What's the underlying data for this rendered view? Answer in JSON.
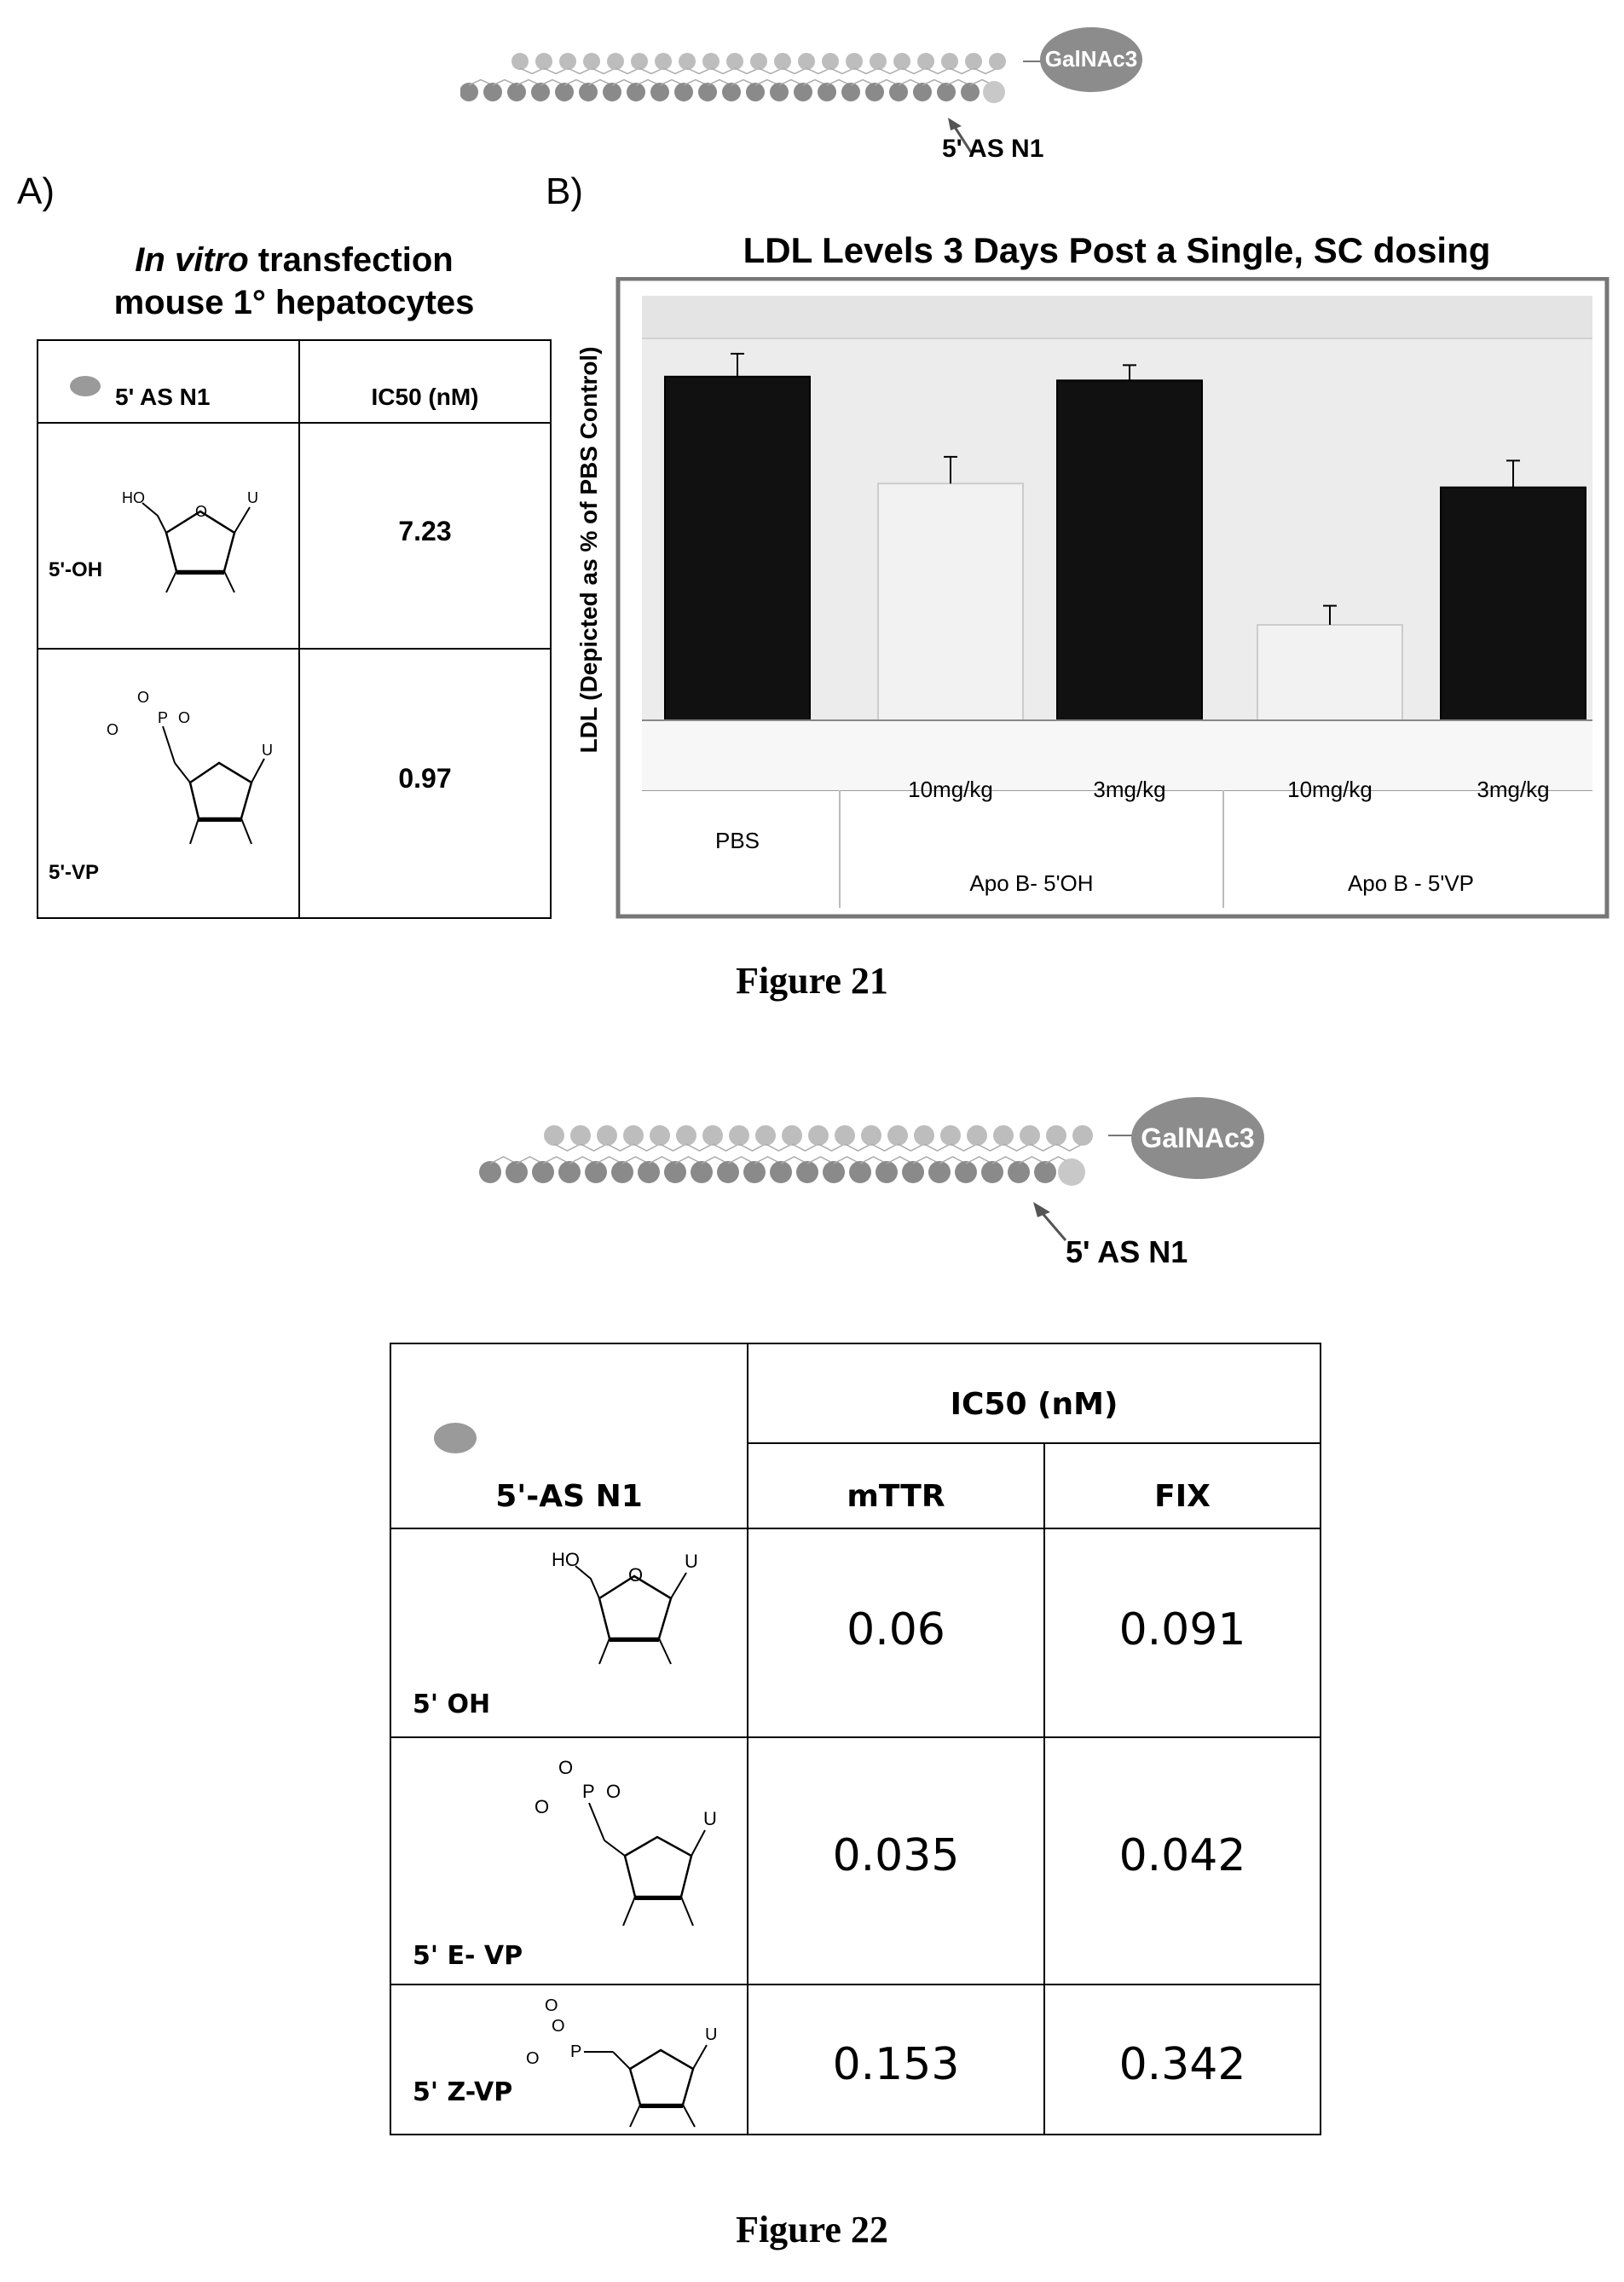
{
  "fig21": {
    "diagram": {
      "conjugate": "GalNAc3",
      "arrow_label": "5' AS N1"
    },
    "panel_a_label": "A)",
    "panel_b_label": "B)",
    "panel_a": {
      "title_italic": "In vitro",
      "title_rest": " transfection",
      "title_line2": "mouse 1° hepatocytes",
      "col1_header": "5' AS N1",
      "col2_header": "IC50 (nM)",
      "rows": [
        {
          "label": "5'-OH",
          "value": "7.23"
        },
        {
          "label": "5'-VP",
          "value": "0.97"
        }
      ]
    },
    "caption": "Figure 21"
  },
  "chart_data": {
    "type": "bar",
    "title": "LDL Levels 3 Days Post a Single, SC dosing",
    "ylabel": "LDL (Depicted as % of PBS Control)",
    "categories": [
      "PBS",
      "10mg/kg",
      "3mg/kg",
      "10mg/kg",
      "3mg/kg"
    ],
    "groups": [
      "Apo B- 5'OH",
      "Apo B - 5'VP"
    ],
    "values": [
      90,
      62,
      89,
      25,
      61
    ],
    "errors": [
      6,
      7,
      4,
      5,
      7
    ],
    "bar_colors": [
      "#111111",
      "#eeeeee",
      "#111111",
      "#eeeeee",
      "#111111"
    ],
    "ylim": [
      0,
      100
    ],
    "grid": false,
    "legend": "none"
  },
  "fig22": {
    "diagram": {
      "conjugate": "GalNAc3",
      "arrow_label": "5' AS N1"
    },
    "header_group": "IC50 (nM)",
    "col0_header": "5'-AS N1",
    "col1_header": "mTTR",
    "col2_header": "FIX",
    "rows": [
      {
        "label": "5' OH",
        "mttr": "0.06",
        "fix": "0.091"
      },
      {
        "label": "5' E- VP",
        "mttr": "0.035",
        "fix": "0.042"
      },
      {
        "label": "5' Z-VP",
        "mttr": "0.153",
        "fix": "0.342"
      }
    ],
    "caption": "Figure 22"
  },
  "chem": {
    "hydroxyl": "HO",
    "base": "U",
    "phosphorus": "P",
    "oxygen": "O"
  }
}
